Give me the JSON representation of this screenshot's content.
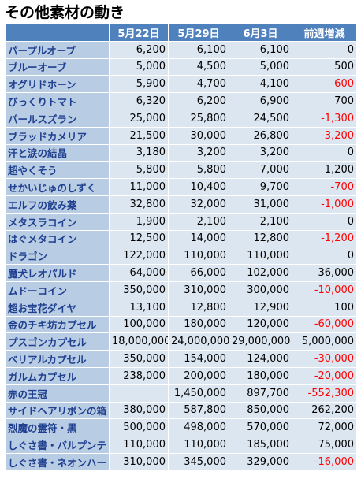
{
  "title": "その他素材の動き",
  "table": {
    "headers": [
      "5月22日",
      "5月29日",
      "6月3日",
      "前週増減"
    ],
    "rows": [
      [
        "パープルオーブ",
        "6,200",
        "6,100",
        "6,100",
        "0"
      ],
      [
        "ブルーオーブ",
        "5,000",
        "4,500",
        "5,000",
        "500"
      ],
      [
        "オグリドホーン",
        "5,900",
        "4,700",
        "4,100",
        "-600"
      ],
      [
        "びっくりトマト",
        "6,320",
        "6,200",
        "6,900",
        "700"
      ],
      [
        "パールスズラン",
        "25,000",
        "25,800",
        "24,500",
        "-1,300"
      ],
      [
        "ブラッドカメリア",
        "21,500",
        "30,000",
        "26,800",
        "-3,200"
      ],
      [
        "汗と涙の結晶",
        "3,180",
        "3,200",
        "3,200",
        "0"
      ],
      [
        "超やくそう",
        "5,800",
        "5,800",
        "7,000",
        "1,200"
      ],
      [
        "せかいじゅのしずく",
        "11,000",
        "10,400",
        "9,700",
        "-700"
      ],
      [
        "エルフの飲み薬",
        "32,800",
        "32,000",
        "31,000",
        "-1,000"
      ],
      [
        "メタスラコイン",
        "1,900",
        "2,100",
        "2,100",
        "0"
      ],
      [
        "はぐメタコイン",
        "12,500",
        "14,000",
        "12,800",
        "-1,200"
      ],
      [
        "ドラゴン",
        "122,000",
        "110,000",
        "110,000",
        "0"
      ],
      [
        "魔犬レオパルド",
        "64,000",
        "66,000",
        "102,000",
        "36,000"
      ],
      [
        "ムドーコイン",
        "350,000",
        "310,000",
        "300,000",
        "-10,000"
      ],
      [
        "超お宝花ダイヤ",
        "13,100",
        "12,800",
        "12,900",
        "100"
      ],
      [
        "金のチキ坊カプセル",
        "100,000",
        "180,000",
        "120,000",
        "-60,000"
      ],
      [
        "プスゴンカプセル",
        "18,000,000",
        "24,000,000",
        "29,000,000",
        "5,000,000"
      ],
      [
        "ベリアルカプセル",
        "350,000",
        "154,000",
        "124,000",
        "-30,000"
      ],
      [
        "ガルムカプセル",
        "238,000",
        "200,000",
        "180,000",
        "-20,000"
      ],
      [
        "赤の王冠",
        null,
        "1,450,000",
        "897,700",
        "-552,300"
      ],
      [
        "サイドヘアリボンの箱",
        "380,000",
        "587,800",
        "850,000",
        "262,200"
      ],
      [
        "烈魔の霊符・黒",
        "500,000",
        "498,000",
        "570,000",
        "72,000"
      ],
      [
        "しぐさ書・バルプンテ",
        "110,000",
        "110,000",
        "185,000",
        "75,000"
      ],
      [
        "しぐさ書・ネオンハート",
        "310,000",
        "345,000",
        "329,000",
        "-16,000"
      ]
    ]
  }
}
